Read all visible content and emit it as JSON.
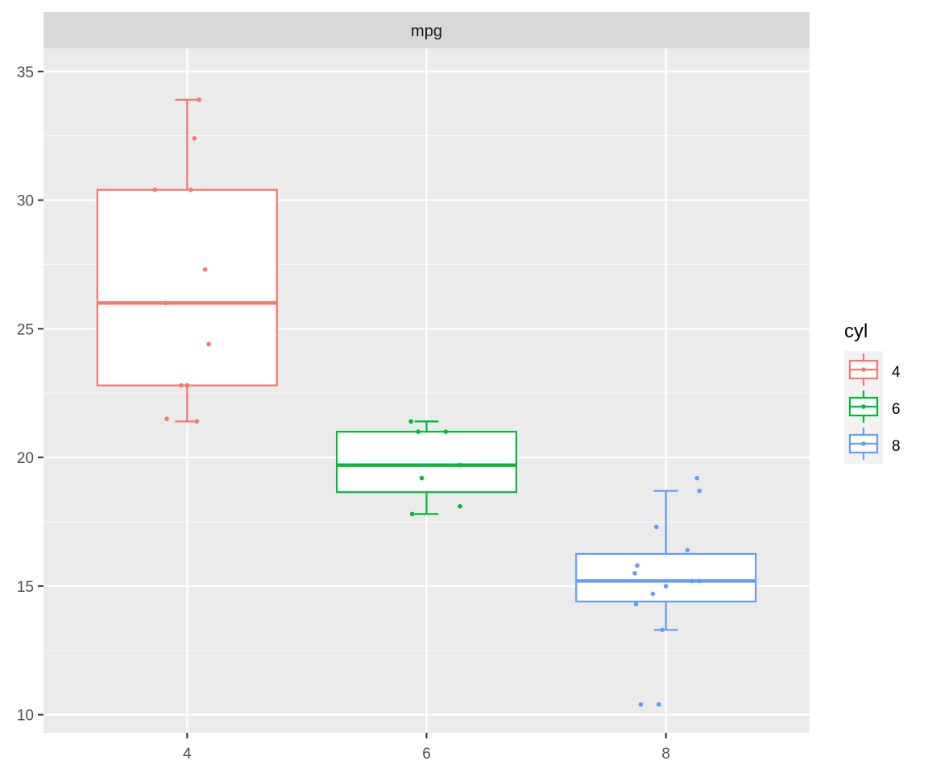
{
  "chart_data": {
    "type": "box",
    "facet_label": "mpg",
    "categories": [
      "4",
      "6",
      "8"
    ],
    "x_values": [
      4,
      6,
      8
    ],
    "ylim": [
      9.3,
      35.9
    ],
    "xlim": [
      2.8,
      9.2
    ],
    "y_ticks": [
      10,
      15,
      20,
      25,
      30,
      35
    ],
    "y_tick_labels": [
      "10",
      "15",
      "20",
      "25",
      "30",
      "35"
    ],
    "x_ticks": [
      4,
      6,
      8
    ],
    "x_tick_labels": [
      "4",
      "6",
      "8"
    ],
    "grid": true,
    "legend": {
      "title": "cyl",
      "placement": "right",
      "entries": [
        "4",
        "6",
        "8"
      ]
    },
    "series": [
      {
        "name": "4",
        "color": "#F8766D",
        "x": 4,
        "box": {
          "lower_whisker": 21.4,
          "q1": 22.8,
          "median": 26.0,
          "q3": 30.4,
          "upper_whisker": 33.9
        },
        "points": [
          {
            "dx": 0.1,
            "y": 33.9
          },
          {
            "dx": 0.06,
            "y": 32.4
          },
          {
            "dx": -0.27,
            "y": 30.4
          },
          {
            "dx": 0.03,
            "y": 30.4
          },
          {
            "dx": 0.15,
            "y": 27.3
          },
          {
            "dx": -0.18,
            "y": 26.0
          },
          {
            "dx": 0.18,
            "y": 24.4
          },
          {
            "dx": -0.05,
            "y": 22.8
          },
          {
            "dx": 0.0,
            "y": 22.8
          },
          {
            "dx": -0.17,
            "y": 21.5
          },
          {
            "dx": 0.08,
            "y": 21.4
          }
        ]
      },
      {
        "name": "6",
        "color": "#00BA38",
        "x": 6,
        "box": {
          "lower_whisker": 17.8,
          "q1": 18.65,
          "median": 19.7,
          "q3": 21.0,
          "upper_whisker": 21.4
        },
        "points": [
          {
            "dx": -0.13,
            "y": 21.4
          },
          {
            "dx": -0.07,
            "y": 21.0
          },
          {
            "dx": 0.16,
            "y": 21.0
          },
          {
            "dx": 0.28,
            "y": 19.7
          },
          {
            "dx": -0.04,
            "y": 19.2
          },
          {
            "dx": 0.28,
            "y": 18.1
          },
          {
            "dx": -0.12,
            "y": 17.8
          }
        ]
      },
      {
        "name": "8",
        "color": "#619CFF",
        "x": 8,
        "box": {
          "lower_whisker": 13.3,
          "q1": 14.4,
          "median": 15.2,
          "q3": 16.25,
          "upper_whisker": 18.7
        },
        "points": [
          {
            "dx": 0.26,
            "y": 19.2
          },
          {
            "dx": 0.28,
            "y": 18.7
          },
          {
            "dx": -0.08,
            "y": 17.3
          },
          {
            "dx": 0.18,
            "y": 16.4
          },
          {
            "dx": -0.24,
            "y": 15.8
          },
          {
            "dx": -0.26,
            "y": 15.5
          },
          {
            "dx": 0.22,
            "y": 15.2
          },
          {
            "dx": 0.28,
            "y": 15.2
          },
          {
            "dx": 0.0,
            "y": 15.0
          },
          {
            "dx": -0.11,
            "y": 14.7
          },
          {
            "dx": -0.25,
            "y": 14.3
          },
          {
            "dx": -0.03,
            "y": 13.3
          },
          {
            "dx": -0.21,
            "y": 10.4
          },
          {
            "dx": -0.06,
            "y": 10.4
          }
        ]
      }
    ]
  }
}
